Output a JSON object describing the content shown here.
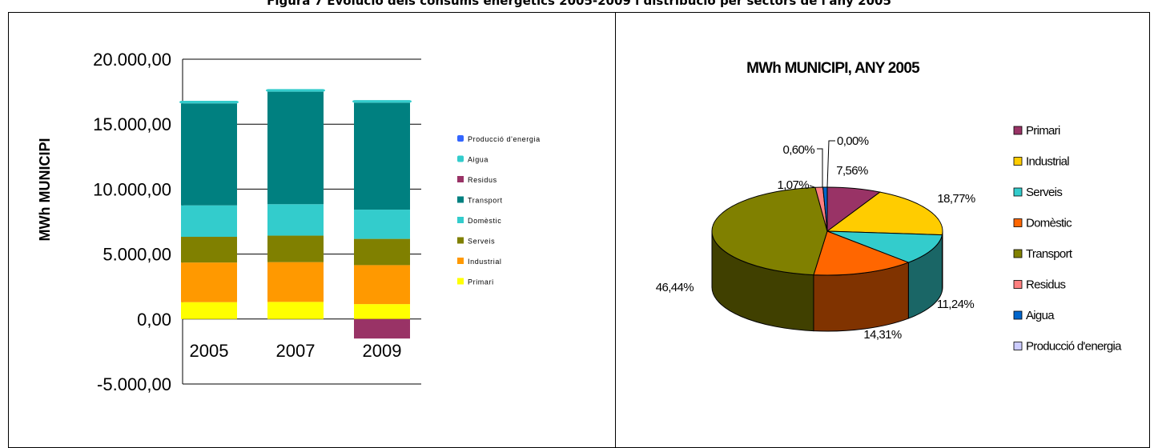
{
  "figure_title": "Figura 7 Evolució dels consums energètics 2005-2009 i distribució per sectors de l'any 2005",
  "chart_data": [
    {
      "type": "bar",
      "stacked": true,
      "title": "",
      "ylabel": "MWh MUNICIPI",
      "xlabel": "",
      "ylim": [
        -5000,
        20000
      ],
      "yticks": [
        -5000,
        0,
        5000,
        10000,
        15000,
        20000
      ],
      "ytick_labels": [
        "-5.000,00",
        "0,00",
        "5.000,00",
        "10.000,00",
        "15.000,00",
        "20.000,00"
      ],
      "grid": true,
      "legend_position": "right",
      "categories": [
        "2005",
        "2007",
        "2009"
      ],
      "series": [
        {
          "name": "Primari",
          "color": "#FFFF00",
          "values": [
            1300,
            1320,
            1150
          ]
        },
        {
          "name": "Industrial",
          "color": "#FF9900",
          "values": [
            3050,
            3060,
            3000
          ]
        },
        {
          "name": "Serveis",
          "color": "#808000",
          "values": [
            1980,
            2040,
            2020
          ]
        },
        {
          "name": "Domèstic",
          "color": "#33CCCC",
          "values": [
            2420,
            2420,
            2250
          ]
        },
        {
          "name": "Transport",
          "color": "#008080",
          "values": [
            7850,
            8660,
            8230
          ]
        },
        {
          "name": "Residus",
          "color": "#993366",
          "values": [
            0,
            0,
            -1500
          ]
        },
        {
          "name": "Aigua",
          "color": "#33CCCC",
          "values": [
            200,
            200,
            200
          ]
        },
        {
          "name": "Producció d'energia",
          "color": "#3366FF",
          "values": [
            0,
            0,
            0
          ]
        }
      ],
      "legend_order": [
        "Producció d'energia",
        "Aigua",
        "Residus",
        "Transport",
        "Domèstic",
        "Serveis",
        "Industrial",
        "Primari"
      ]
    },
    {
      "type": "pie",
      "three_d": true,
      "title": "MWh MUNICIPI, ANY 2005",
      "legend_position": "right",
      "slices": [
        {
          "name": "Primari",
          "value": 7.56,
          "label": "7,56%",
          "color": "#993366"
        },
        {
          "name": "Industrial",
          "value": 18.77,
          "label": "18,77%",
          "color": "#FFCC00"
        },
        {
          "name": "Serveis",
          "value": 11.24,
          "label": "11,24%",
          "color": "#33CCCC"
        },
        {
          "name": "Domèstic",
          "value": 14.31,
          "label": "14,31%",
          "color": "#FF6600"
        },
        {
          "name": "Transport",
          "value": 46.44,
          "label": "46,44%",
          "color": "#808000"
        },
        {
          "name": "Residus",
          "value": 1.07,
          "label": "1,07%",
          "color": "#FF8080"
        },
        {
          "name": "Aigua",
          "value": 0.6,
          "label": "0,60%",
          "color": "#0066CC"
        },
        {
          "name": "Producció d'energia",
          "value": 0.0,
          "label": "0,00%",
          "color": "#CCCCFF"
        }
      ]
    }
  ]
}
